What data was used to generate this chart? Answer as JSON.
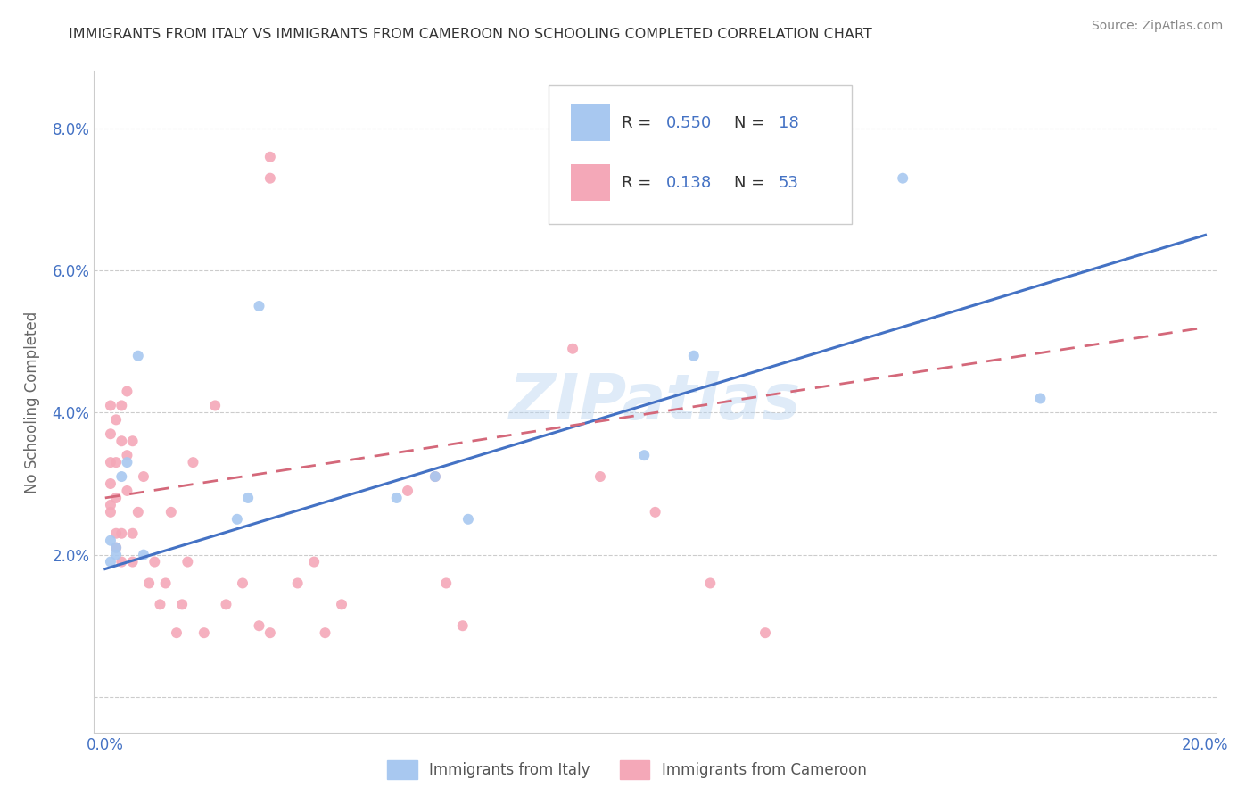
{
  "title": "IMMIGRANTS FROM ITALY VS IMMIGRANTS FROM CAMEROON NO SCHOOLING COMPLETED CORRELATION CHART",
  "source": "Source: ZipAtlas.com",
  "ylabel": "No Schooling Completed",
  "xlim": [
    -0.002,
    0.202
  ],
  "ylim": [
    -0.005,
    0.088
  ],
  "italy_color": "#a8c8f0",
  "cameroon_color": "#f4a8b8",
  "italy_line_color": "#4472c4",
  "cameroon_line_color": "#d4687a",
  "legend_label_italy": "Immigrants from Italy",
  "legend_label_cameroon": "Immigrants from Cameroon",
  "watermark": "ZIPatlas",
  "italy_x": [
    0.001,
    0.001,
    0.002,
    0.002,
    0.003,
    0.004,
    0.006,
    0.007,
    0.024,
    0.026,
    0.028,
    0.053,
    0.06,
    0.066,
    0.098,
    0.107,
    0.145,
    0.17
  ],
  "italy_y": [
    0.019,
    0.022,
    0.02,
    0.021,
    0.031,
    0.033,
    0.048,
    0.02,
    0.025,
    0.028,
    0.055,
    0.028,
    0.031,
    0.025,
    0.034,
    0.048,
    0.073,
    0.042
  ],
  "cameroon_x": [
    0.001,
    0.001,
    0.001,
    0.001,
    0.001,
    0.001,
    0.002,
    0.002,
    0.002,
    0.002,
    0.002,
    0.003,
    0.003,
    0.003,
    0.003,
    0.004,
    0.004,
    0.004,
    0.005,
    0.005,
    0.005,
    0.006,
    0.007,
    0.008,
    0.009,
    0.01,
    0.011,
    0.012,
    0.013,
    0.014,
    0.015,
    0.016,
    0.018,
    0.02,
    0.022,
    0.025,
    0.028,
    0.03,
    0.03,
    0.03,
    0.035,
    0.038,
    0.04,
    0.043,
    0.055,
    0.062,
    0.085,
    0.09,
    0.1,
    0.11,
    0.12,
    0.06,
    0.065
  ],
  "cameroon_y": [
    0.026,
    0.027,
    0.03,
    0.033,
    0.037,
    0.041,
    0.021,
    0.023,
    0.028,
    0.033,
    0.039,
    0.019,
    0.023,
    0.036,
    0.041,
    0.029,
    0.034,
    0.043,
    0.019,
    0.023,
    0.036,
    0.026,
    0.031,
    0.016,
    0.019,
    0.013,
    0.016,
    0.026,
    0.009,
    0.013,
    0.019,
    0.033,
    0.009,
    0.041,
    0.013,
    0.016,
    0.01,
    0.009,
    0.073,
    0.076,
    0.016,
    0.019,
    0.009,
    0.013,
    0.029,
    0.016,
    0.049,
    0.031,
    0.026,
    0.016,
    0.009,
    0.031,
    0.01
  ],
  "italy_line_x0": 0.0,
  "italy_line_y0": 0.018,
  "italy_line_x1": 0.2,
  "italy_line_y1": 0.065,
  "cameroon_line_x0": 0.0,
  "cameroon_line_y0": 0.028,
  "cameroon_line_x1": 0.2,
  "cameroon_line_y1": 0.052
}
